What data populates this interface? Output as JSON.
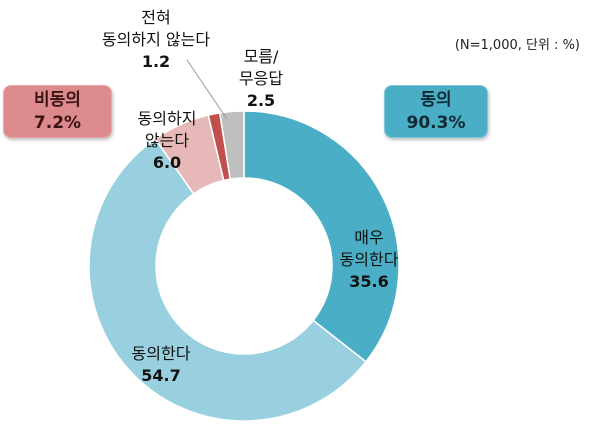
{
  "note": "(N=1,000, 단위 : %)",
  "badges": {
    "agree": {
      "label": "동의",
      "value": "90.3%",
      "color": "#4aaec6"
    },
    "disagree": {
      "label": "비동의",
      "value": "7.2%",
      "color": "#dc8a8c"
    }
  },
  "chart_data": {
    "type": "pie",
    "donut": true,
    "slices": [
      {
        "label": [
          "매우",
          "동의한다"
        ],
        "value": 35.6,
        "color": "#4aaec6"
      },
      {
        "label": [
          "동의한다"
        ],
        "value": 54.7,
        "color": "#98d0e0"
      },
      {
        "label": [
          "동의하지",
          "않는다"
        ],
        "value": 6.0,
        "color": "#e6b9b8"
      },
      {
        "label": [
          "전혀",
          "동의하지 않는다"
        ],
        "value": 1.2,
        "color": "#c0504d"
      },
      {
        "label": [
          "모름/",
          "무응답"
        ],
        "value": 2.5,
        "color": "#bfbfbf"
      }
    ]
  }
}
